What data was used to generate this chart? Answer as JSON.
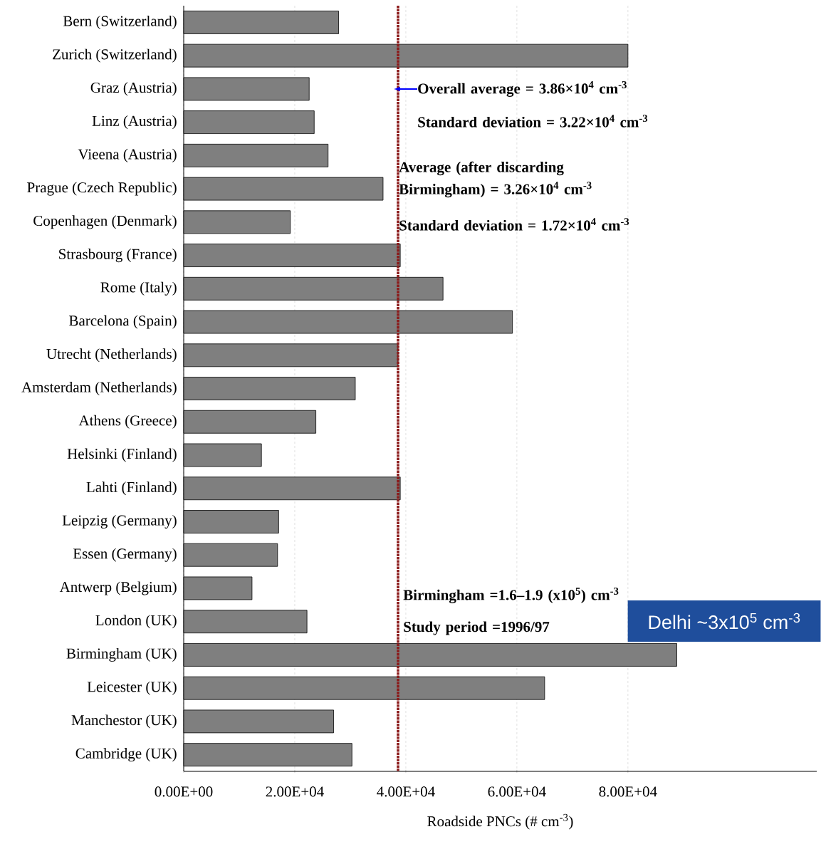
{
  "chart_data": {
    "type": "bar",
    "orientation": "horizontal",
    "categories": [
      "Bern (Switzerland)",
      "Zurich (Switzerland)",
      "Graz (Austria)",
      "Linz (Austria)",
      "Vieena (Austria)",
      "Prague (Czech Republic)",
      "Copenhagen (Denmark)",
      "Strasbourg (France)",
      "Rome (Italy)",
      "Barcelona (Spain)",
      "Utrecht (Netherlands)",
      "Amsterdam (Netherlands)",
      "Athens (Greece)",
      "Helsinki (Finland)",
      "Lahti (Finland)",
      "Leipzig (Germany)",
      "Essen (Germany)",
      "Antwerp (Belgium)",
      "London (UK)",
      "Birmingham (UK)",
      "Leicester (UK)",
      "Manchestor (UK)",
      "Cambridge (UK)"
    ],
    "values": [
      27900,
      80000,
      22600,
      23500,
      26000,
      35900,
      19200,
      39000,
      46700,
      59200,
      38600,
      30900,
      23800,
      14000,
      39000,
      17100,
      16900,
      12300,
      22200,
      88800,
      65000,
      27000,
      30300
    ],
    "color": "#7f7f7f",
    "xlim": [
      0,
      114000
    ],
    "xticks": [
      {
        "value": 0,
        "label": "0.00E+00"
      },
      {
        "value": 20000,
        "label": "2.00E+04"
      },
      {
        "value": 40000,
        "label": "4.00E+04"
      },
      {
        "value": 60000,
        "label": "6.00E+04"
      },
      {
        "value": 80000,
        "label": "8.00E+04"
      }
    ],
    "xlabel": "Roadside PNCs (# cm$^{-3}$)",
    "grid": "x",
    "ref_lines": [
      {
        "axis": "x",
        "value": 38600,
        "color": "#8b1a1a",
        "line_style": "dotted"
      }
    ],
    "annotations": [
      "Overall average = 3.86×10$^{4}$ cm$^{-3}$",
      "Standard deviation = 3.22×10$^{4}$ cm$^{-3}$",
      "Average (after discarding Birmingham) = 3.26×10$^{4}$ cm$^{-3}$",
      "Standard deviation = 1.72×10$^{4}$ cm$^{-3}$",
      "Birmingham =1.6–1.9 (x10$^{5}$) cm$^{-3}$",
      "Study period =1996/97",
      "Delhi ~3x10$^{5}$ cm$^{-3}$"
    ]
  }
}
